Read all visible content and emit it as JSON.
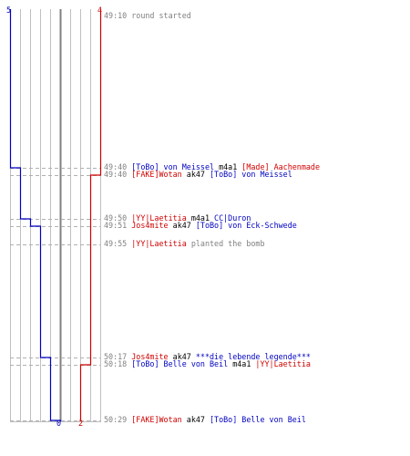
{
  "colors": {
    "blue_team": "#0000c0",
    "red_team": "#d00000",
    "gridline": "#c0c0c0",
    "center_line": "#808080",
    "dashed_guide": "#b0b0b0",
    "timestamp": "#808080",
    "weapon": "#000000"
  },
  "scores": {
    "blue_start": "5",
    "red_start": "4",
    "blue_end": "0",
    "red_end": "2"
  },
  "chart_data": {
    "type": "line",
    "title": "",
    "xlabel": "",
    "ylabel": "",
    "series": [
      {
        "color": "#0000c0",
        "points": [
          {
            "time": "49:10",
            "alive": 5
          },
          {
            "time": "49:40",
            "alive": 4
          },
          {
            "time": "49:50",
            "alive": 3
          },
          {
            "time": "49:51",
            "alive": 2
          },
          {
            "time": "50:17",
            "alive": 1
          },
          {
            "time": "50:29",
            "alive": 0
          }
        ]
      },
      {
        "color": "#d00000",
        "points": [
          {
            "time": "49:10",
            "alive": 4
          },
          {
            "time": "49:40",
            "alive": 3
          },
          {
            "time": "50:18",
            "alive": 2
          }
        ]
      }
    ]
  },
  "events": [
    {
      "time": "49:10",
      "parts": [
        {
          "text": "round started",
          "style": "gray"
        }
      ]
    },
    {
      "time": "49:40",
      "parts": [
        {
          "text": "[ToBo] von Meissel",
          "style": "blue"
        },
        {
          "text": " m4a1 ",
          "style": "k"
        },
        {
          "text": "[Made] Aachenmade",
          "style": "red"
        }
      ]
    },
    {
      "time": "49:40",
      "parts": [
        {
          "text": "[FAKE]Wotan",
          "style": "red"
        },
        {
          "text": " ak47 ",
          "style": "k"
        },
        {
          "text": "[ToBo] von Meissel",
          "style": "blue"
        }
      ]
    },
    {
      "time": "49:50",
      "parts": [
        {
          "text": "|YY|Laetitia",
          "style": "red"
        },
        {
          "text": " m4a1 ",
          "style": "k"
        },
        {
          "text": "CC|Duron",
          "style": "blue"
        }
      ]
    },
    {
      "time": "49:51",
      "parts": [
        {
          "text": "Jos4mite",
          "style": "red"
        },
        {
          "text": " ak47 ",
          "style": "k"
        },
        {
          "text": "[ToBo] von Eck-Schwede",
          "style": "blue"
        }
      ]
    },
    {
      "time": "49:55",
      "parts": [
        {
          "text": "|YY|Laetitia",
          "style": "red"
        },
        {
          "text": " planted the bomb",
          "style": "gray"
        }
      ]
    },
    {
      "time": "50:17",
      "parts": [
        {
          "text": "Jos4mite",
          "style": "red"
        },
        {
          "text": " ak47 ",
          "style": "k"
        },
        {
          "text": "***die lebende legende***",
          "style": "blue"
        }
      ]
    },
    {
      "time": "50:18",
      "parts": [
        {
          "text": "[ToBo] Belle von Beil",
          "style": "blue"
        },
        {
          "text": " m4a1 ",
          "style": "k"
        },
        {
          "text": "|YY|Laetitia",
          "style": "red"
        }
      ]
    },
    {
      "time": "50:29",
      "parts": [
        {
          "text": "[FAKE]Wotan",
          "style": "red"
        },
        {
          "text": " ak47 ",
          "style": "k"
        },
        {
          "text": "[ToBo] Belle von Beil",
          "style": "blue"
        }
      ]
    }
  ]
}
